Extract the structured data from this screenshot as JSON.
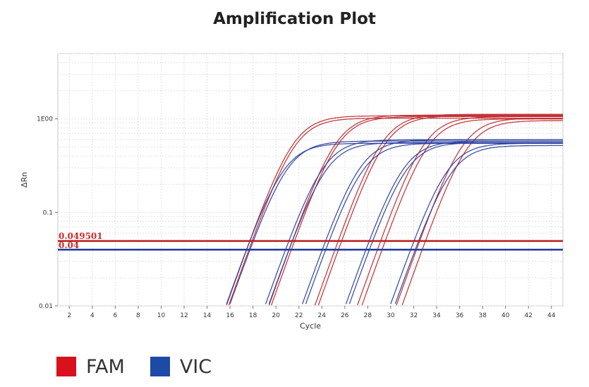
{
  "chart_data": {
    "type": "line",
    "title": "Amplification Plot",
    "xlabel": "Cycle",
    "ylabel": "ΔRn",
    "xlim": [
      1,
      45
    ],
    "ylim": [
      0.01,
      5
    ],
    "y_scale": "log",
    "x_ticks": [
      2,
      4,
      6,
      8,
      10,
      12,
      14,
      16,
      18,
      20,
      22,
      24,
      26,
      28,
      30,
      32,
      34,
      36,
      38,
      40,
      42,
      44
    ],
    "y_ticks": [
      {
        "value": 0.01,
        "label": "0.01"
      },
      {
        "value": 0.1,
        "label": "0.1"
      },
      {
        "value": 1,
        "label": "1E00"
      }
    ],
    "grid": true,
    "thresholds": [
      {
        "label": "0.049501",
        "value": 0.049501,
        "color": "#bb1a1a"
      },
      {
        "label": "0.04",
        "value": 0.04,
        "color": "#1f3fa0"
      }
    ],
    "series": [
      {
        "name": "FAM",
        "color": "#c0282c",
        "curves": [
          {
            "ct": 17.8,
            "plateau": 1.02
          },
          {
            "ct": 17.6,
            "plateau": 1.08
          },
          {
            "ct": 21.5,
            "plateau": 1.06
          },
          {
            "ct": 21.3,
            "plateau": 1.1
          },
          {
            "ct": 25.6,
            "plateau": 1.08
          },
          {
            "ct": 25.3,
            "plateau": 1.12
          },
          {
            "ct": 29.4,
            "plateau": 1.0
          },
          {
            "ct": 29.0,
            "plateau": 1.06
          },
          {
            "ct": 32.9,
            "plateau": 0.96
          },
          {
            "ct": 32.4,
            "plateau": 1.02
          }
        ]
      },
      {
        "name": "VIC",
        "color": "#2a3f9e",
        "curves": [
          {
            "ct": 17.6,
            "plateau": 0.55
          },
          {
            "ct": 17.9,
            "plateau": 0.58
          },
          {
            "ct": 21.3,
            "plateau": 0.56
          },
          {
            "ct": 21.0,
            "plateau": 0.6
          },
          {
            "ct": 24.5,
            "plateau": 0.55
          },
          {
            "ct": 24.2,
            "plateau": 0.6
          },
          {
            "ct": 28.3,
            "plateau": 0.56
          },
          {
            "ct": 28.0,
            "plateau": 0.58
          },
          {
            "ct": 32.3,
            "plateau": 0.52
          },
          {
            "ct": 31.9,
            "plateau": 0.55
          }
        ]
      }
    ]
  },
  "legend": {
    "items": [
      {
        "label": "FAM",
        "color": "#d8111b"
      },
      {
        "label": "VIC",
        "color": "#1c4aa6"
      }
    ]
  }
}
